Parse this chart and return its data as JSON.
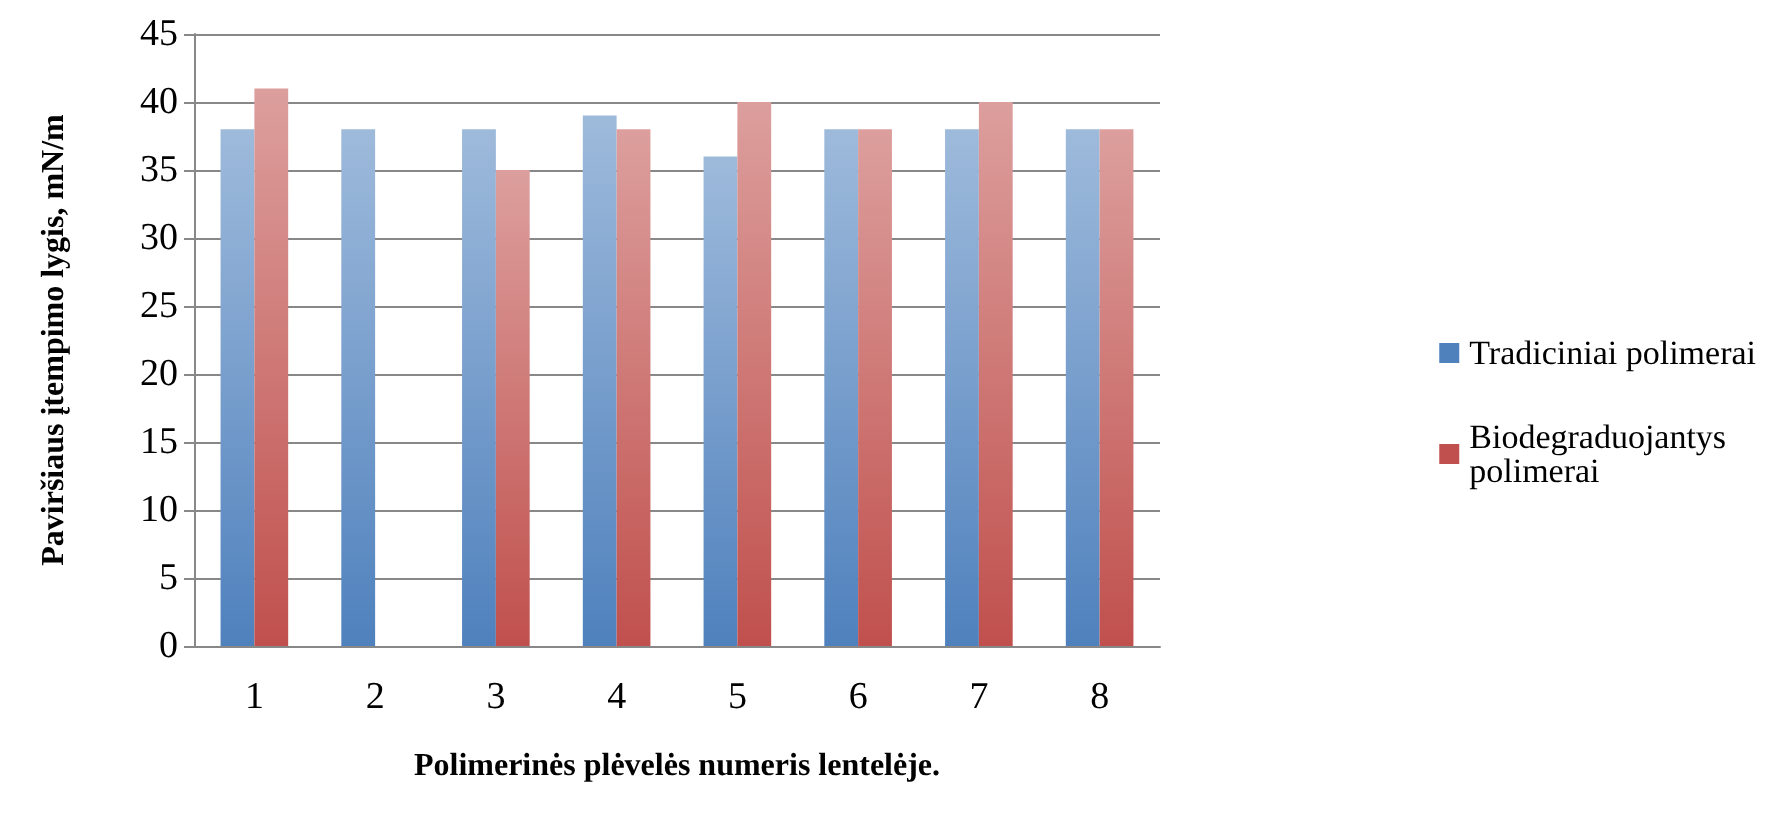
{
  "chart_data": {
    "type": "bar",
    "xlabel": "Polimerinės plėvelės numeris lentelėje.",
    "ylabel": "Paviršiaus įtempimo lygis, mN/m",
    "categories": [
      "1",
      "2",
      "3",
      "4",
      "5",
      "6",
      "7",
      "8"
    ],
    "series": [
      {
        "name": "Tradiciniai polimerai",
        "color": "#4f81bd",
        "values": [
          38,
          38,
          38,
          39,
          36,
          38,
          38,
          38
        ]
      },
      {
        "name": "Biodegraduojantys polimerai",
        "color": "#c0504d",
        "values": [
          41,
          null,
          35,
          38,
          40,
          38,
          40,
          38
        ]
      }
    ],
    "ylim": [
      0,
      45
    ],
    "yticks": [
      0,
      5,
      10,
      15,
      20,
      25,
      30,
      35,
      40,
      45
    ],
    "grid": "y",
    "legend": "right"
  }
}
